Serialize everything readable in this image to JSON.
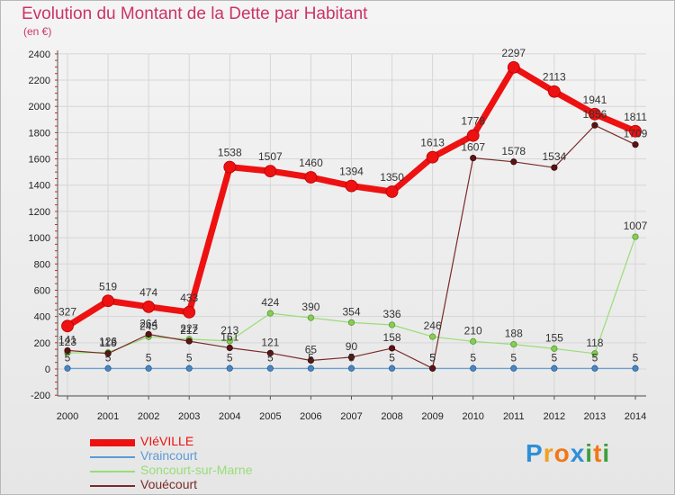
{
  "header": {
    "title": "Evolution du Montant de la Dette par Habitant",
    "subtitle": "(en €)"
  },
  "brand": {
    "letters": [
      "P",
      "r",
      "o",
      "x",
      "i",
      "t",
      "i"
    ],
    "colors": [
      "#2e8fd6",
      "#f0a020",
      "#f07818",
      "#2e8fd6",
      "#3da03d",
      "#f07818",
      "#3da03d"
    ]
  },
  "chart_data": {
    "type": "line",
    "title": "Evolution du Montant de la Dette par Habitant",
    "ylabel": "(en €)",
    "xlabel": "",
    "x": [
      "2000",
      "2001",
      "2002",
      "2003",
      "2004",
      "2005",
      "2006",
      "2007",
      "2008",
      "2009",
      "2010",
      "2011",
      "2012",
      "2013",
      "2014"
    ],
    "ylim": [
      -200,
      2400
    ],
    "yticks": [
      -200,
      0,
      200,
      400,
      600,
      800,
      1000,
      1200,
      1400,
      1600,
      1800,
      2000,
      2200,
      2400
    ],
    "grid": true,
    "legend_position": "bottom-left",
    "series": [
      {
        "name": "VIéVILLE",
        "color": "#ee1111",
        "values": [
          327,
          519,
          474,
          433,
          1538,
          1507,
          1460,
          1394,
          1350,
          1613,
          1778,
          2297,
          2113,
          1941,
          1811
        ]
      },
      {
        "name": "Vraincourt",
        "color": "#5b9bd5",
        "values": [
          5,
          5,
          5,
          5,
          5,
          5,
          5,
          5,
          5,
          5,
          5,
          5,
          5,
          5,
          5
        ]
      },
      {
        "name": "Soncourt-sur-Marne",
        "color": "#99dd77",
        "values": [
          123,
          126,
          245,
          227,
          213,
          424,
          390,
          354,
          336,
          246,
          210,
          188,
          155,
          118,
          1007
        ]
      },
      {
        "name": "Vouécourt",
        "color": "#7a2a2a",
        "values": [
          141,
          118,
          264,
          212,
          161,
          121,
          65,
          90,
          158,
          5,
          1607,
          1578,
          1534,
          1856,
          1709
        ]
      }
    ]
  }
}
